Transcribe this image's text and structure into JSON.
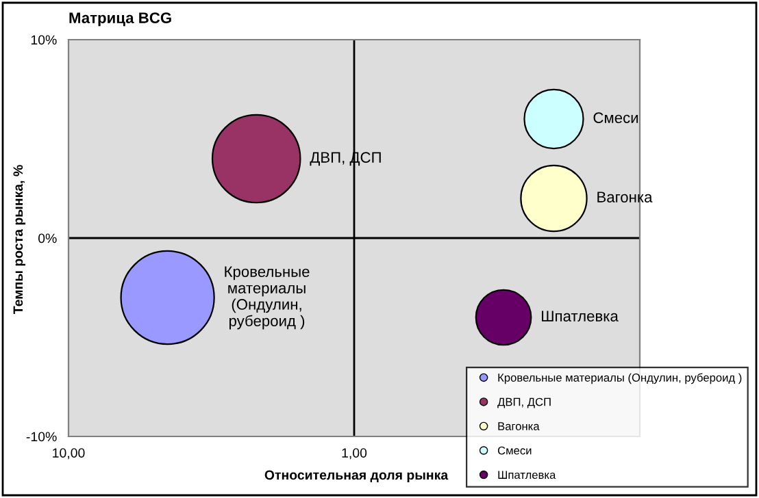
{
  "chart_data": {
    "type": "bubble",
    "title": "Матрица BCG",
    "xlabel": "Относительная доля рынка",
    "ylabel": "Темпы роста рынка, %",
    "log": "x",
    "xlim": [
      10,
      0.1
    ],
    "xticks": [
      {
        "value": 10,
        "label": "10,00"
      },
      {
        "value": 1,
        "label": "1,00"
      }
    ],
    "ylim": [
      -10,
      10
    ],
    "yticks": [
      {
        "value": -10,
        "label": "-10%"
      },
      {
        "value": 0,
        "label": "0%"
      },
      {
        "value": 10,
        "label": "10%"
      }
    ],
    "grid": false,
    "legend": "bottom right",
    "ref_lines": [
      {
        "axis": "x",
        "value": 1,
        "color": "#000000"
      },
      {
        "axis": "y",
        "value": 0,
        "color": "#000000"
      }
    ],
    "series": [
      {
        "name": "Кровельные материалы (Ондулин, рубероид )",
        "color": "#9999ff",
        "x": [
          4.5
        ],
        "values": [
          -3
        ],
        "sizes": [
          1
        ]
      },
      {
        "name": "ДВП, ДСП",
        "color": "#993366",
        "x": [
          2.2
        ],
        "values": [
          4
        ],
        "sizes": [
          0.89
        ]
      },
      {
        "name": "Вагонка",
        "color": "#ffffcc",
        "x": [
          0.2
        ],
        "values": [
          2
        ],
        "sizes": [
          0.5
        ]
      },
      {
        "name": "Смеси",
        "color": "#ccffff",
        "x": [
          0.2
        ],
        "values": [
          6
        ],
        "sizes": [
          0.4
        ]
      },
      {
        "name": "Шпатлевка",
        "color": "#660066",
        "x": [
          0.3
        ],
        "values": [
          -4
        ],
        "sizes": [
          0.35
        ]
      }
    ]
  }
}
